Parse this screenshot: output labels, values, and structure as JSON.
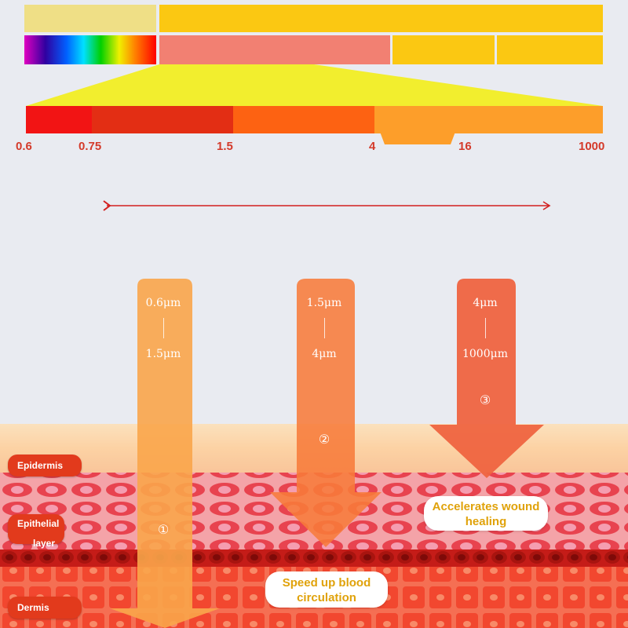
{
  "colors": {
    "band_beige": "#efdf86",
    "band_yellow": "#fbc812",
    "band_salmon": "#f28072",
    "scale_red1": "#f21414",
    "scale_red2": "#e32e14",
    "scale_orange1": "#fd6212",
    "scale_orange2": "#fd9e2a",
    "arrow1": "#f9a54a",
    "arrow2": "#f77b3a",
    "arrow3": "#ef6440",
    "layer_pill": "#e23a1c",
    "callout_text": "#e0a20a",
    "guide_line": "#d32020"
  },
  "scale": {
    "ticks": [
      "0.6",
      "0.75",
      "1.5",
      "4",
      "16",
      "1000"
    ]
  },
  "arrows": [
    {
      "top": "0.6μm",
      "bottom": "1.5μm",
      "marker": "①"
    },
    {
      "top": "1.5μm",
      "bottom": "4μm",
      "marker": "②"
    },
    {
      "top": "4μm",
      "bottom": "1000μm",
      "marker": "③"
    }
  ],
  "layers": {
    "epidermis": "Epidermis",
    "epithelial": "Epithelial",
    "epithelial_line2": "layer",
    "dermis": "Dermis"
  },
  "callouts": {
    "wound_line1": "Accelerates wound",
    "wound_line2": "healing",
    "blood_line1": "Speed up blood",
    "blood_line2": "circulation"
  }
}
